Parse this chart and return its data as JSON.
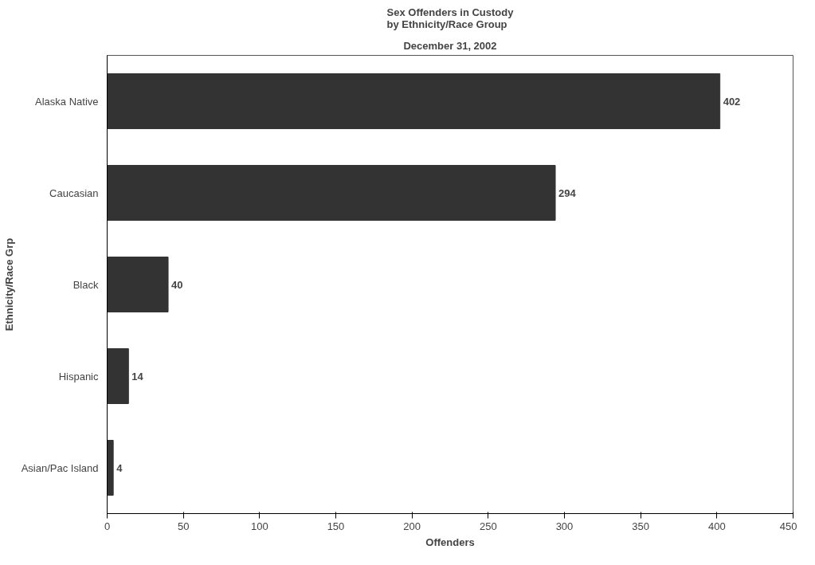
{
  "chart_data": {
    "type": "bar",
    "orientation": "horizontal",
    "title": "Sex Offenders in Custody\nby Ethnicity/Race Group",
    "subtitle": "December 31, 2002",
    "xlabel": "Offenders",
    "ylabel": "Ethnicity/Race Grp",
    "categories": [
      "Alaska Native",
      "Caucasian",
      "Black",
      "Hispanic",
      "Asian/Pac Island"
    ],
    "values": [
      402,
      294,
      40,
      14,
      4
    ],
    "color": "#333333",
    "xlim": [
      0,
      450
    ],
    "xticks": [
      0,
      50,
      100,
      150,
      200,
      250,
      300,
      350,
      400,
      450
    ],
    "data_labels": true,
    "grid": false
  }
}
